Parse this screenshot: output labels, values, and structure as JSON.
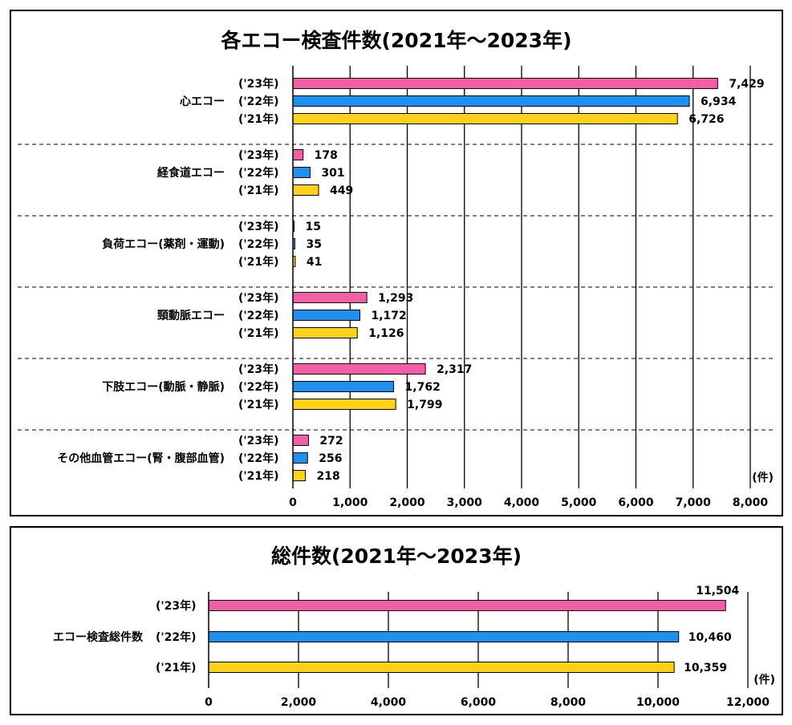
{
  "colors": {
    "y2023": "#f25fa6",
    "y2022": "#1e90f0",
    "y2021": "#ffd21a"
  },
  "chart_data": [
    {
      "type": "bar",
      "orientation": "horizontal",
      "title": "各エコー検査件数(2021年～2023年)",
      "unit_label": "(件)",
      "categories": [
        "心エコー",
        "経食道エコー",
        "負荷エコー(薬剤・運動)",
        "頸動脈エコー",
        "下肢エコー(動脈・静脈)",
        "その他血管エコー(腎・腹部血管)"
      ],
      "series_labels": [
        "('23年)",
        "('22年)",
        "('21年)"
      ],
      "series": [
        {
          "values": [
            7429,
            178,
            15,
            1293,
            2317,
            272
          ],
          "labels": [
            "7,429",
            "178",
            "15",
            "1,293",
            "2,317",
            "272"
          ]
        },
        {
          "values": [
            6934,
            301,
            35,
            1172,
            1762,
            256
          ],
          "labels": [
            "6,934",
            "301",
            "35",
            "1,172",
            "1,762",
            "256"
          ]
        },
        {
          "values": [
            6726,
            449,
            41,
            1126,
            1799,
            218
          ],
          "labels": [
            "6,726",
            "449",
            "41",
            "1,126",
            "1,799",
            "218"
          ]
        }
      ],
      "xlim": [
        0,
        8000
      ],
      "xticks": [
        0,
        1000,
        2000,
        3000,
        4000,
        5000,
        6000,
        7000,
        8000
      ],
      "xtick_labels": [
        "0",
        "1,000",
        "2,000",
        "3,000",
        "4,000",
        "5,000",
        "6,000",
        "7,000",
        "8,000"
      ],
      "grid": true
    },
    {
      "type": "bar",
      "orientation": "horizontal",
      "title": "総件数(2021年～2023年)",
      "unit_label": "(件)",
      "categories": [
        "エコー検査総件数"
      ],
      "series_labels": [
        "('23年)",
        "('22年)",
        "('21年)"
      ],
      "series": [
        {
          "values": [
            11504
          ],
          "labels": [
            "11,504"
          ]
        },
        {
          "values": [
            10460
          ],
          "labels": [
            "10,460"
          ]
        },
        {
          "values": [
            10359
          ],
          "labels": [
            "10,359"
          ]
        }
      ],
      "xlim": [
        0,
        12000
      ],
      "xticks": [
        0,
        2000,
        4000,
        6000,
        8000,
        10000,
        12000
      ],
      "xtick_labels": [
        "0",
        "2,000",
        "4,000",
        "6,000",
        "8,000",
        "10,000",
        "12,000"
      ],
      "grid": true
    }
  ]
}
